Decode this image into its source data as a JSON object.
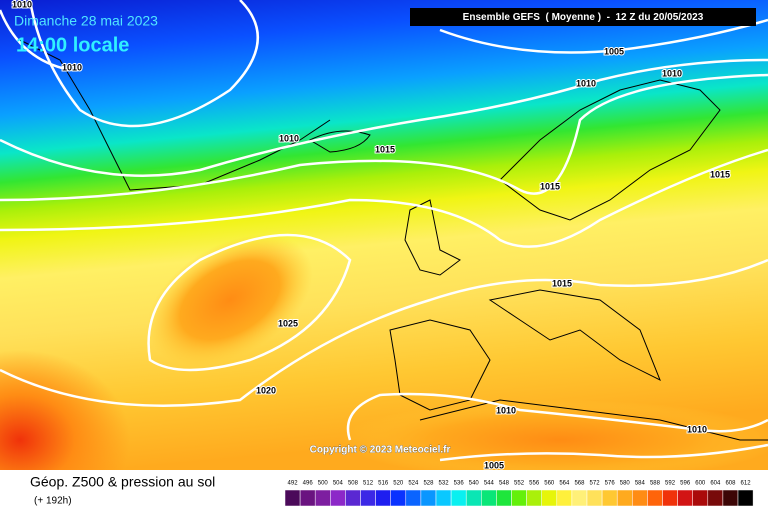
{
  "title": "Dimanche 28 mai 2023",
  "time": "14:00 locale",
  "header": "Ensemble GEFS  ( Moyenne )  -  12 Z du 20/05/2023",
  "copyright": "Copyright © 2023 Meteociel.fr",
  "caption": "Géop. Z500 & pression au sol",
  "lead_time": "(+ 192h)",
  "isobar_labels": [
    1010,
    1010,
    1005,
    1010,
    1010,
    1010,
    1015,
    1015,
    1015,
    1015,
    1025,
    1020,
    1010,
    1010,
    1005
  ],
  "colorbar": {
    "labels": [
      492,
      496,
      500,
      504,
      508,
      512,
      516,
      520,
      524,
      528,
      532,
      536,
      540,
      544,
      548,
      552,
      556,
      560,
      564,
      568,
      572,
      576,
      580,
      584,
      588,
      592,
      596,
      600,
      604,
      608,
      612
    ],
    "colors": [
      "#4b0a5a",
      "#6a1380",
      "#7d1ea0",
      "#8c28c8",
      "#5a28d2",
      "#3c28e6",
      "#1e1ef0",
      "#0a32ff",
      "#0a64ff",
      "#0a96ff",
      "#0ac8ff",
      "#0af0f0",
      "#0ae6b4",
      "#0ae678",
      "#1ee63c",
      "#64f00a",
      "#aaf00a",
      "#e6f50a",
      "#fff03c",
      "#fff078",
      "#ffe15a",
      "#ffc832",
      "#ffaa1e",
      "#ff8c14",
      "#ff640a",
      "#f0320a",
      "#d21414",
      "#aa0a0a",
      "#780a0a",
      "#3c0505",
      "#000000"
    ]
  }
}
